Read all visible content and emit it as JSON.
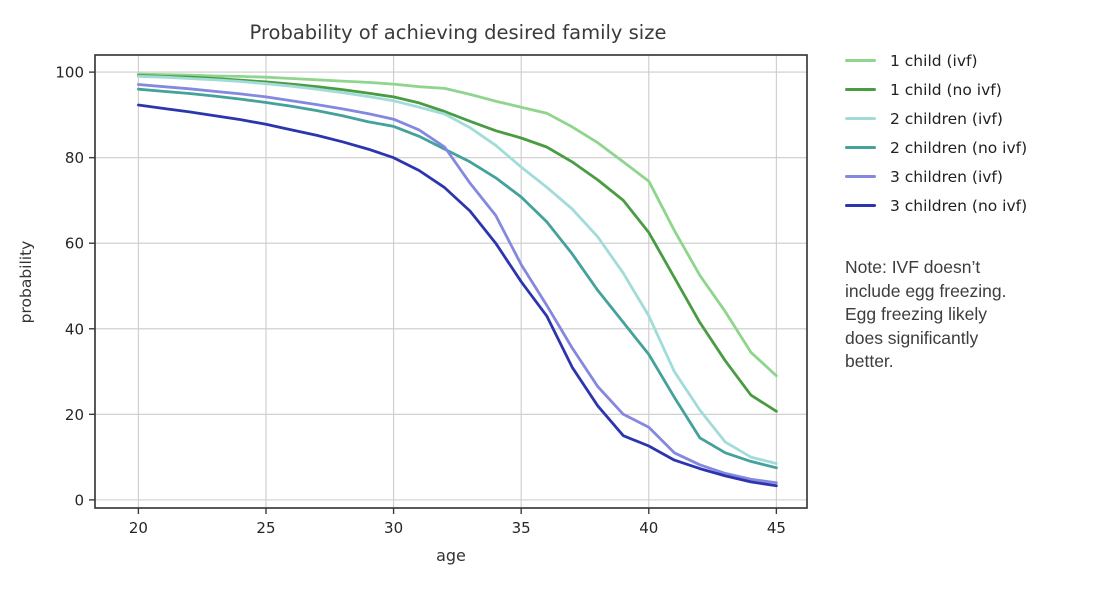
{
  "chart_data": {
    "type": "line",
    "title": "Probability of achieving desired family size",
    "xlabel": "age",
    "ylabel": "probability",
    "x_ticks": [
      20,
      25,
      30,
      35,
      40,
      45
    ],
    "y_ticks": [
      0,
      20,
      40,
      60,
      80,
      100
    ],
    "xlim": [
      18.3,
      46.2
    ],
    "ylim": [
      -1.9,
      104
    ],
    "grid": true,
    "legend_position": "right-outside",
    "x": [
      20,
      21,
      22,
      23,
      24,
      25,
      26,
      27,
      28,
      29,
      30,
      31,
      32,
      33,
      34,
      35,
      36,
      37,
      38,
      39,
      40,
      41,
      42,
      43,
      44,
      45
    ],
    "series": [
      {
        "name": "1 child (ivf)",
        "color": "#8fd58d",
        "values": [
          99.5,
          99.4,
          99.3,
          99.1,
          99.0,
          98.8,
          98.5,
          98.2,
          97.9,
          97.6,
          97.2,
          96.6,
          96.2,
          94.8,
          93.2,
          91.8,
          90.4,
          87.2,
          83.5,
          79.0,
          74.5,
          63.0,
          52.5,
          44.0,
          34.5,
          29.0
        ]
      },
      {
        "name": "1 child (no ivf)",
        "color": "#4a9c43",
        "values": [
          99.2,
          99.0,
          98.8,
          98.5,
          98.1,
          97.7,
          97.2,
          96.6,
          95.9,
          95.1,
          94.2,
          92.8,
          90.8,
          88.5,
          86.3,
          84.6,
          82.5,
          79.0,
          74.8,
          70.0,
          62.5,
          52.0,
          41.5,
          32.5,
          24.5,
          20.7
        ]
      },
      {
        "name": "2 children (ivf)",
        "color": "#a2dcd9",
        "values": [
          99.0,
          98.8,
          98.5,
          98.2,
          97.8,
          97.3,
          96.7,
          96.0,
          95.2,
          94.3,
          93.3,
          91.8,
          90.2,
          87.0,
          82.9,
          77.8,
          73.1,
          68.0,
          61.5,
          53.0,
          43.0,
          30.0,
          21.0,
          13.5,
          10.0,
          8.5
        ]
      },
      {
        "name": "2 children (no ivf)",
        "color": "#44a19b",
        "values": [
          96.0,
          95.5,
          95.0,
          94.4,
          93.7,
          92.9,
          92.0,
          91.0,
          89.8,
          88.4,
          87.3,
          85.0,
          82.0,
          79.0,
          75.3,
          70.8,
          65.0,
          57.5,
          49.0,
          41.5,
          34.0,
          24.0,
          14.5,
          11.0,
          9.0,
          7.5
        ]
      },
      {
        "name": "3 children (ivf)",
        "color": "#8588df",
        "values": [
          97.1,
          96.6,
          96.1,
          95.5,
          94.9,
          94.2,
          93.3,
          92.4,
          91.4,
          90.3,
          89.0,
          86.5,
          82.5,
          74.0,
          66.5,
          55.0,
          45.5,
          35.5,
          26.5,
          20.0,
          17.0,
          11.0,
          8.2,
          6.2,
          4.8,
          4.0
        ]
      },
      {
        "name": "3 children (no ivf)",
        "color": "#2c35ae",
        "values": [
          92.3,
          91.5,
          90.7,
          89.8,
          88.9,
          87.8,
          86.5,
          85.2,
          83.7,
          82.0,
          80.0,
          77.0,
          73.0,
          67.5,
          60.0,
          51.0,
          43.0,
          31.0,
          22.0,
          15.0,
          12.6,
          9.3,
          7.3,
          5.6,
          4.2,
          3.3
        ]
      }
    ]
  },
  "note": {
    "lines": [
      "Note: IVF doesn’t",
      "include egg freezing.",
      "Egg freezing likely",
      "does significantly",
      "better."
    ]
  },
  "style": {
    "spine_color": "#3c3c3c",
    "grid_color": "#cccccc",
    "tick_color": "#3c3c3c"
  }
}
